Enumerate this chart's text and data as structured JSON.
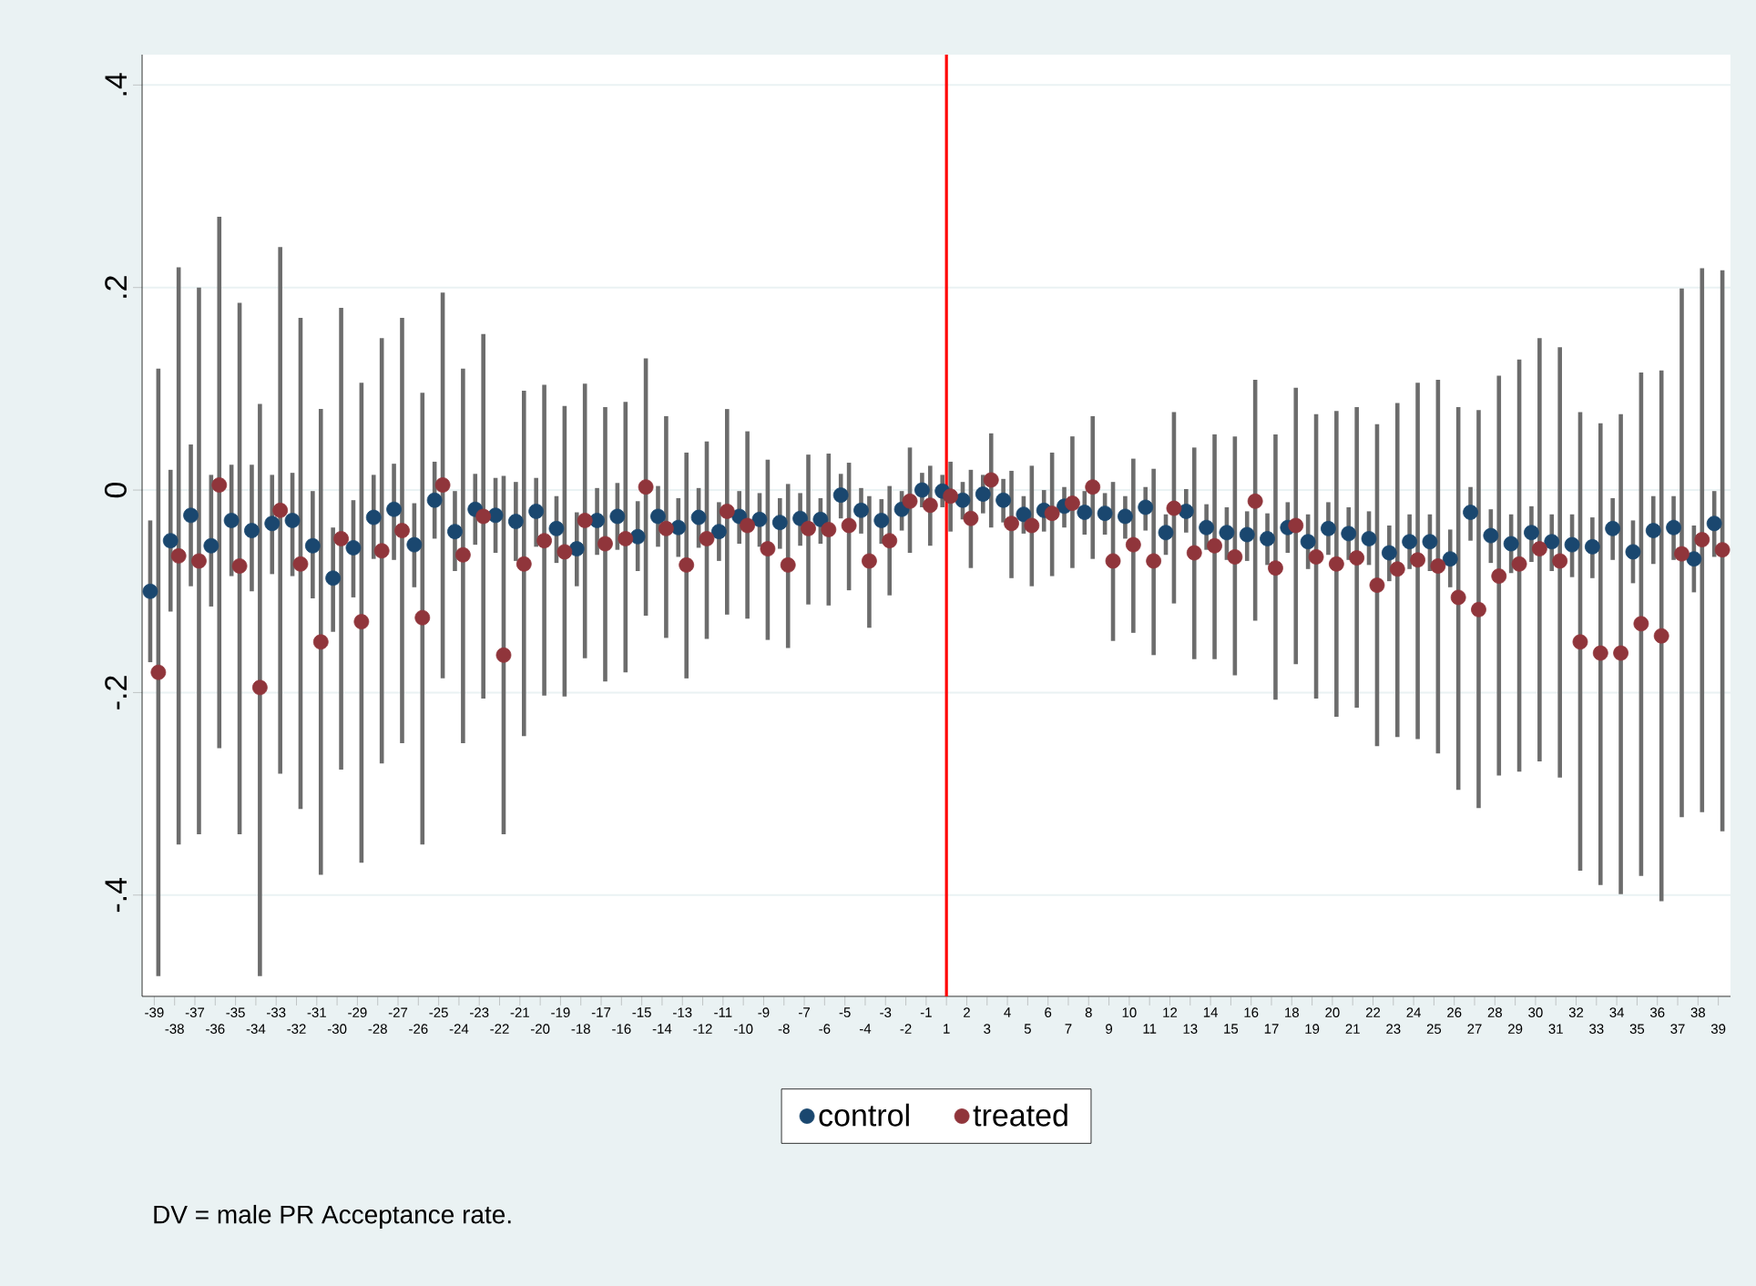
{
  "chart_data": {
    "type": "scatter",
    "categories": [
      "-39",
      "-38",
      "-37",
      "-36",
      "-35",
      "-34",
      "-33",
      "-32",
      "-31",
      "-30",
      "-29",
      "-28",
      "-27",
      "-26",
      "-25",
      "-24",
      "-23",
      "-22",
      "-21",
      "-20",
      "-19",
      "-18",
      "-17",
      "-16",
      "-15",
      "-14",
      "-13",
      "-12",
      "-11",
      "-10",
      "-9",
      "-8",
      "-7",
      "-6",
      "-5",
      "-4",
      "-3",
      "-2",
      "-1",
      "1",
      "2",
      "3",
      "4",
      "5",
      "6",
      "7",
      "8",
      "9",
      "10",
      "11",
      "12",
      "13",
      "14",
      "15",
      "16",
      "17",
      "18",
      "19",
      "20",
      "21",
      "22",
      "23",
      "24",
      "25",
      "26",
      "27",
      "28",
      "29",
      "30",
      "31",
      "32",
      "33",
      "34",
      "35",
      "36",
      "37",
      "38",
      "39"
    ],
    "series": [
      {
        "name": "control",
        "color": "#1a476f",
        "values": [
          -0.1,
          -0.05,
          -0.025,
          -0.055,
          -0.03,
          -0.04,
          -0.033,
          -0.03,
          -0.055,
          -0.087,
          -0.057,
          -0.027,
          -0.019,
          -0.054,
          -0.01,
          -0.041,
          -0.019,
          -0.025,
          -0.031,
          -0.021,
          -0.038,
          -0.058,
          -0.03,
          -0.026,
          -0.046,
          -0.026,
          -0.037,
          -0.027,
          -0.041,
          -0.026,
          -0.029,
          -0.032,
          -0.028,
          -0.029,
          -0.005,
          -0.02,
          -0.03,
          -0.019,
          0.0,
          -0.001,
          -0.01,
          -0.004,
          -0.01,
          -0.024,
          -0.02,
          -0.016,
          -0.022,
          -0.023,
          -0.026,
          -0.017,
          -0.042,
          -0.021,
          -0.037,
          -0.042,
          -0.044,
          -0.048,
          -0.037,
          -0.051,
          -0.038,
          -0.043,
          -0.048,
          -0.062,
          -0.051,
          -0.051,
          -0.068,
          -0.022,
          -0.045,
          -0.053,
          -0.042,
          -0.051,
          -0.054,
          -0.056,
          -0.038,
          -0.061,
          -0.04,
          -0.037,
          -0.068,
          -0.033
        ],
        "errors": [
          [
            -0.17,
            -0.03
          ],
          [
            -0.12,
            0.02
          ],
          [
            -0.095,
            0.045
          ],
          [
            -0.115,
            0.015
          ],
          [
            -0.085,
            0.025
          ],
          [
            -0.1,
            0.025
          ],
          [
            -0.083,
            0.015
          ],
          [
            -0.085,
            0.017
          ],
          [
            -0.107,
            -0.001
          ],
          [
            -0.14,
            -0.037
          ],
          [
            -0.106,
            -0.01
          ],
          [
            -0.068,
            0.015
          ],
          [
            -0.069,
            0.026
          ],
          [
            -0.096,
            -0.013
          ],
          [
            -0.048,
            0.028
          ],
          [
            -0.08,
            -0.001
          ],
          [
            -0.054,
            0.016
          ],
          [
            -0.062,
            0.012
          ],
          [
            -0.07,
            0.008
          ],
          [
            -0.056,
            0.012
          ],
          [
            -0.072,
            -0.006
          ],
          [
            -0.095,
            -0.022
          ],
          [
            -0.064,
            0.002
          ],
          [
            -0.059,
            0.007
          ],
          [
            -0.08,
            -0.011
          ],
          [
            -0.056,
            0.004
          ],
          [
            -0.066,
            -0.008
          ],
          [
            -0.057,
            0.002
          ],
          [
            -0.07,
            -0.012
          ],
          [
            -0.053,
            -0.001
          ],
          [
            -0.056,
            -0.003
          ],
          [
            -0.058,
            -0.008
          ],
          [
            -0.055,
            -0.003
          ],
          [
            -0.053,
            -0.008
          ],
          [
            -0.028,
            0.016
          ],
          [
            -0.043,
            0.002
          ],
          [
            -0.053,
            -0.009
          ],
          [
            -0.04,
            -0.001
          ],
          [
            -0.017,
            0.017
          ],
          [
            -0.017,
            0.015
          ],
          [
            -0.029,
            0.008
          ],
          [
            -0.023,
            0.015
          ],
          [
            -0.032,
            0.011
          ],
          [
            -0.043,
            -0.006
          ],
          [
            -0.041,
            0.0
          ],
          [
            -0.037,
            0.003
          ],
          [
            -0.044,
            -0.001
          ],
          [
            -0.044,
            -0.003
          ],
          [
            -0.048,
            -0.006
          ],
          [
            -0.04,
            0.003
          ],
          [
            -0.064,
            -0.024
          ],
          [
            -0.042,
            0.001
          ],
          [
            -0.059,
            -0.014
          ],
          [
            -0.069,
            -0.017
          ],
          [
            -0.07,
            -0.021
          ],
          [
            -0.074,
            -0.023
          ],
          [
            -0.062,
            -0.012
          ],
          [
            -0.078,
            -0.024
          ],
          [
            -0.064,
            -0.012
          ],
          [
            -0.069,
            -0.017
          ],
          [
            -0.074,
            -0.021
          ],
          [
            -0.09,
            -0.035
          ],
          [
            -0.078,
            -0.024
          ],
          [
            -0.08,
            -0.024
          ],
          [
            -0.096,
            -0.039
          ],
          [
            -0.05,
            0.003
          ],
          [
            -0.072,
            -0.019
          ],
          [
            -0.082,
            -0.024
          ],
          [
            -0.071,
            -0.016
          ],
          [
            -0.08,
            -0.024
          ],
          [
            -0.086,
            -0.024
          ],
          [
            -0.087,
            -0.027
          ],
          [
            -0.069,
            -0.008
          ],
          [
            -0.092,
            -0.03
          ],
          [
            -0.073,
            -0.006
          ],
          [
            -0.069,
            -0.006
          ],
          [
            -0.101,
            -0.035
          ],
          [
            -0.066,
            -0.001
          ]
        ]
      },
      {
        "name": "treated",
        "color": "#90353b",
        "values": [
          -0.18,
          -0.065,
          -0.07,
          0.005,
          -0.075,
          -0.195,
          -0.02,
          -0.073,
          -0.15,
          -0.048,
          -0.13,
          -0.06,
          -0.04,
          -0.126,
          0.005,
          -0.064,
          -0.026,
          -0.163,
          -0.073,
          -0.05,
          -0.061,
          -0.03,
          -0.053,
          -0.048,
          0.003,
          -0.038,
          -0.074,
          -0.048,
          -0.021,
          -0.035,
          -0.058,
          -0.074,
          -0.038,
          -0.039,
          -0.035,
          -0.07,
          -0.05,
          -0.011,
          -0.015,
          -0.006,
          -0.028,
          0.01,
          -0.033,
          -0.035,
          -0.023,
          -0.013,
          0.003,
          -0.07,
          -0.054,
          -0.07,
          -0.018,
          -0.062,
          -0.055,
          -0.066,
          -0.011,
          -0.077,
          -0.035,
          -0.066,
          -0.073,
          -0.067,
          -0.094,
          -0.078,
          -0.069,
          -0.075,
          -0.106,
          -0.118,
          -0.085,
          -0.073,
          -0.058,
          -0.07,
          -0.15,
          -0.161,
          -0.161,
          -0.132,
          -0.144,
          -0.063,
          -0.049,
          -0.059
        ],
        "errors": [
          [
            -0.48,
            0.12
          ],
          [
            -0.35,
            0.22
          ],
          [
            -0.34,
            0.2
          ],
          [
            -0.255,
            0.27
          ],
          [
            -0.34,
            0.185
          ],
          [
            -0.48,
            0.085
          ],
          [
            -0.28,
            0.24
          ],
          [
            -0.315,
            0.17
          ],
          [
            -0.38,
            0.08
          ],
          [
            -0.276,
            0.18
          ],
          [
            -0.368,
            0.106
          ],
          [
            -0.27,
            0.15
          ],
          [
            -0.25,
            0.17
          ],
          [
            -0.35,
            0.096
          ],
          [
            -0.186,
            0.195
          ],
          [
            -0.25,
            0.12
          ],
          [
            -0.206,
            0.154
          ],
          [
            -0.34,
            0.014
          ],
          [
            -0.243,
            0.098
          ],
          [
            -0.203,
            0.104
          ],
          [
            -0.204,
            0.083
          ],
          [
            -0.166,
            0.105
          ],
          [
            -0.189,
            0.082
          ],
          [
            -0.18,
            0.087
          ],
          [
            -0.124,
            0.13
          ],
          [
            -0.146,
            0.073
          ],
          [
            -0.186,
            0.037
          ],
          [
            -0.147,
            0.048
          ],
          [
            -0.123,
            0.08
          ],
          [
            -0.127,
            0.058
          ],
          [
            -0.148,
            0.03
          ],
          [
            -0.156,
            0.006
          ],
          [
            -0.113,
            0.035
          ],
          [
            -0.114,
            0.036
          ],
          [
            -0.099,
            0.027
          ],
          [
            -0.136,
            -0.006
          ],
          [
            -0.104,
            0.004
          ],
          [
            -0.062,
            0.042
          ],
          [
            -0.055,
            0.024
          ],
          [
            -0.041,
            0.028
          ],
          [
            -0.077,
            0.02
          ],
          [
            -0.037,
            0.056
          ],
          [
            -0.087,
            0.019
          ],
          [
            -0.095,
            0.024
          ],
          [
            -0.085,
            0.037
          ],
          [
            -0.077,
            0.053
          ],
          [
            -0.068,
            0.073
          ],
          [
            -0.149,
            0.008
          ],
          [
            -0.141,
            0.031
          ],
          [
            -0.163,
            0.021
          ],
          [
            -0.112,
            0.077
          ],
          [
            -0.167,
            0.042
          ],
          [
            -0.167,
            0.055
          ],
          [
            -0.183,
            0.053
          ],
          [
            -0.129,
            0.109
          ],
          [
            -0.207,
            0.055
          ],
          [
            -0.172,
            0.101
          ],
          [
            -0.206,
            0.075
          ],
          [
            -0.224,
            0.078
          ],
          [
            -0.215,
            0.082
          ],
          [
            -0.253,
            0.065
          ],
          [
            -0.244,
            0.086
          ],
          [
            -0.246,
            0.106
          ],
          [
            -0.26,
            0.109
          ],
          [
            -0.296,
            0.082
          ],
          [
            -0.314,
            0.079
          ],
          [
            -0.282,
            0.113
          ],
          [
            -0.278,
            0.129
          ],
          [
            -0.268,
            0.15
          ],
          [
            -0.284,
            0.141
          ],
          [
            -0.376,
            0.077
          ],
          [
            -0.39,
            0.066
          ],
          [
            -0.399,
            0.075
          ],
          [
            -0.381,
            0.116
          ],
          [
            -0.406,
            0.118
          ],
          [
            -0.323,
            0.199
          ],
          [
            -0.318,
            0.219
          ],
          [
            -0.337,
            0.217
          ]
        ]
      }
    ],
    "ylim": [
      -0.5,
      0.43
    ],
    "yticks": [
      {
        "value": -0.4,
        "label": "-.4"
      },
      {
        "value": -0.2,
        "label": "-.2"
      },
      0,
      {
        "value": 0.2,
        "label": ".2"
      },
      {
        "value": 0.4,
        "label": ".4"
      }
    ],
    "grid": "y",
    "legend": "bottom",
    "marker": "circle",
    "ref_lines": [
      {
        "axis": "x",
        "value": "1",
        "color": "#ff0000"
      }
    ],
    "annotations": [
      "DV = male PR Acceptance rate."
    ]
  }
}
